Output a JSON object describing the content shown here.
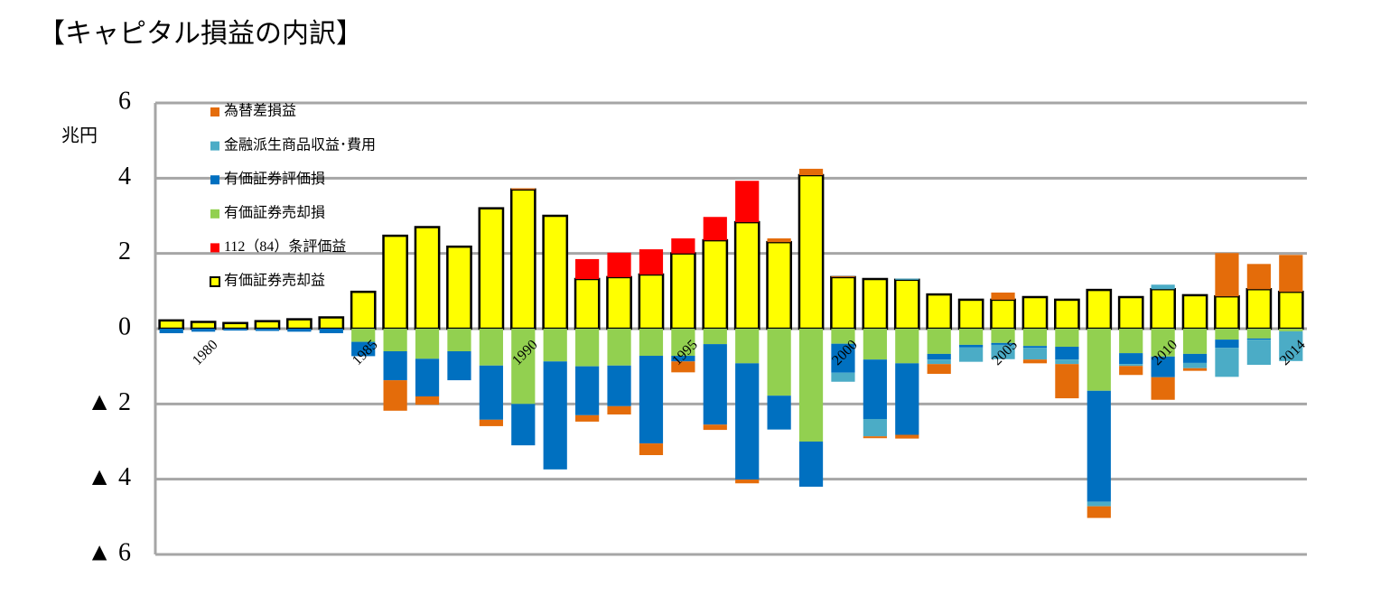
{
  "chart_data": {
    "type": "bar",
    "stacked": true,
    "title": "【キャピタル損益の内訳】",
    "y_label": "兆円",
    "categories": [
      null,
      "1980",
      null,
      null,
      null,
      null,
      "1985",
      null,
      null,
      null,
      null,
      "1990",
      null,
      null,
      null,
      null,
      "1995",
      null,
      null,
      null,
      null,
      "2000",
      null,
      null,
      null,
      null,
      "2005",
      null,
      null,
      null,
      null,
      "2010",
      null,
      null,
      null,
      "2014"
    ],
    "series": [
      {
        "name": "有価証券売却益",
        "color": "#ffff00",
        "values": [
          0.22,
          0.18,
          0.15,
          0.2,
          0.25,
          0.3,
          0.98,
          2.47,
          2.7,
          2.18,
          3.2,
          3.7,
          3.0,
          1.32,
          1.37,
          1.44,
          2.0,
          2.35,
          2.83,
          2.3,
          4.08,
          1.37,
          1.32,
          1.3,
          0.91,
          0.77,
          0.77,
          0.84,
          0.77,
          1.03,
          0.84,
          1.05,
          0.89,
          0.86,
          1.05,
          0.98
        ]
      },
      {
        "name": "112（84）条評価益",
        "color": "#ff0000",
        "values": [
          0,
          0,
          0,
          0,
          0,
          0,
          0,
          0,
          0,
          0,
          0,
          0,
          0,
          0.53,
          0.65,
          0.67,
          0.4,
          0.62,
          1.1,
          0,
          0,
          0,
          0,
          0,
          0,
          0,
          0,
          0,
          0,
          0,
          0,
          0,
          0,
          0,
          0,
          0
        ]
      },
      {
        "name": "有価証券売却損",
        "color": "#92d050",
        "values": [
          0,
          0,
          0,
          0,
          0,
          0,
          -0.35,
          -0.6,
          -0.8,
          -0.6,
          -0.98,
          -2.0,
          -0.87,
          -1.0,
          -0.98,
          -0.72,
          -0.72,
          -0.41,
          -0.92,
          -1.78,
          -3.0,
          -0.4,
          -0.82,
          -0.92,
          -0.67,
          -0.43,
          -0.38,
          -0.46,
          -0.48,
          -1.65,
          -0.65,
          -0.74,
          -0.67,
          -0.29,
          -0.26,
          -0.07
        ]
      },
      {
        "name": "有価証券評価損",
        "color": "#0070c0",
        "values": [
          -0.12,
          -0.08,
          -0.05,
          -0.06,
          -0.08,
          -0.12,
          -0.38,
          -0.77,
          -1.0,
          -0.77,
          -1.44,
          -1.1,
          -2.87,
          -1.3,
          -1.08,
          -2.33,
          -0.15,
          -2.14,
          -3.09,
          -0.9,
          -1.2,
          -0.77,
          -1.58,
          -1.9,
          -0.15,
          -0.07,
          -0.05,
          -0.05,
          -0.34,
          -2.95,
          -0.29,
          -0.55,
          -0.24,
          -0.22,
          -0.03,
          0
        ]
      },
      {
        "name": "金融派生商品収益･費用",
        "color": "#4bacc6",
        "values": [
          0,
          0,
          0,
          0,
          0,
          0,
          0,
          0,
          0,
          0,
          0,
          0,
          0,
          0,
          0,
          0,
          0,
          0,
          0,
          0,
          0,
          -0.24,
          -0.46,
          0.03,
          -0.12,
          -0.38,
          -0.38,
          -0.31,
          -0.12,
          -0.12,
          -0.05,
          0.12,
          -0.14,
          -0.77,
          -0.67,
          -0.79
        ]
      },
      {
        "name": "為替差損益",
        "color": "#e46c0a",
        "values": [
          0,
          0,
          0,
          0,
          0,
          0,
          0,
          -0.81,
          -0.22,
          0,
          -0.17,
          0.03,
          0,
          -0.17,
          -0.22,
          -0.31,
          -0.29,
          -0.14,
          -0.1,
          0.1,
          0.17,
          0.02,
          -0.05,
          -0.1,
          -0.26,
          0,
          0.19,
          -0.1,
          -0.91,
          -0.31,
          -0.24,
          -0.6,
          -0.07,
          1.15,
          0.67,
          0.98
        ]
      }
    ],
    "ylim": [
      -6,
      6
    ],
    "yticks": [
      {
        "value": -6,
        "label": "▲ 6"
      },
      {
        "value": -4,
        "label": "▲ 4"
      },
      {
        "value": -2,
        "label": "▲ 2"
      },
      0,
      2,
      4,
      6
    ],
    "grid": true,
    "legend": "upper left"
  }
}
